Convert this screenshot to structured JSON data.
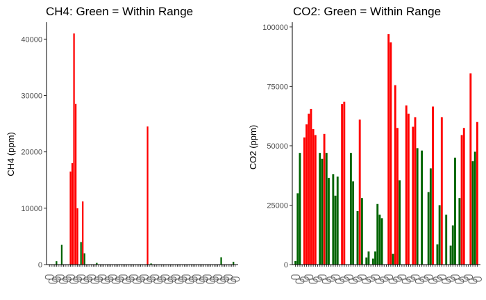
{
  "colors": {
    "in_range": "#006400",
    "out_of_range": "#ff0000",
    "axis": "#000000",
    "tick_text": "#4d4d4d"
  },
  "chart_data": [
    {
      "type": "bar",
      "title": "CH4: Green = Within Range",
      "xlabel": "",
      "ylabel": "CH4 (ppm)",
      "ylim": [
        0,
        43000
      ],
      "yticks": [
        0,
        10000,
        20000,
        30000,
        40000
      ],
      "ytick_labels": [
        "0",
        "10000",
        "20000",
        "30000",
        "40000"
      ],
      "grid": false,
      "x_tick_labels_note": "category tick labels are overplotted and illegible",
      "values": [
        0,
        0,
        0,
        0,
        600,
        0,
        0,
        3500,
        0,
        0,
        0,
        0,
        16500,
        18000,
        41000,
        28500,
        10000,
        0,
        4000,
        11200,
        2000,
        0,
        0,
        0,
        0,
        0,
        0,
        300,
        0,
        0,
        0,
        0,
        0,
        0,
        0,
        0,
        0,
        0,
        0,
        0,
        0,
        0,
        0,
        0,
        0,
        0,
        0,
        0,
        0,
        0,
        0,
        0,
        0,
        0,
        0,
        0,
        24500,
        0,
        200,
        0,
        0,
        0,
        0,
        0,
        0,
        0,
        0,
        0,
        0,
        0,
        0,
        0,
        0,
        0,
        0,
        0,
        0,
        0,
        0,
        0,
        0,
        0,
        0,
        0,
        0,
        0,
        0,
        0,
        0,
        0,
        0,
        0,
        0,
        0,
        0,
        0,
        0,
        0,
        1300,
        0,
        0,
        0,
        0,
        0,
        0,
        500,
        0
      ],
      "within_range": [
        true,
        true,
        true,
        true,
        true,
        true,
        true,
        true,
        true,
        true,
        true,
        true,
        false,
        false,
        false,
        false,
        false,
        true,
        true,
        false,
        true,
        true,
        true,
        true,
        true,
        true,
        true,
        true,
        true,
        true,
        true,
        true,
        true,
        true,
        true,
        true,
        true,
        true,
        true,
        true,
        true,
        true,
        true,
        true,
        true,
        true,
        true,
        true,
        true,
        true,
        true,
        true,
        true,
        true,
        true,
        true,
        false,
        true,
        true,
        true,
        true,
        true,
        true,
        true,
        true,
        true,
        true,
        true,
        true,
        true,
        true,
        true,
        true,
        true,
        true,
        true,
        true,
        true,
        true,
        true,
        true,
        true,
        true,
        true,
        true,
        true,
        true,
        true,
        true,
        true,
        true,
        true,
        true,
        true,
        true,
        true,
        true,
        true,
        true,
        true,
        true,
        true,
        true,
        true,
        true,
        true,
        true
      ]
    },
    {
      "type": "bar",
      "title": "CO2: Green = Within Range",
      "xlabel": "",
      "ylabel": "CO2 (ppm)",
      "ylim": [
        0,
        102000
      ],
      "yticks": [
        0,
        25000,
        50000,
        75000,
        100000
      ],
      "ytick_labels": [
        "0",
        "25000",
        "50000",
        "75000",
        "100000"
      ],
      "grid": false,
      "x_tick_labels_note": "category tick labels are overplotted and illegible",
      "values": [
        1500,
        30000,
        47000,
        0,
        53500,
        59000,
        63500,
        65500,
        57000,
        54500,
        0,
        47000,
        44500,
        55000,
        47000,
        36500,
        0,
        38000,
        29000,
        37000,
        0,
        67500,
        68500,
        0,
        0,
        47000,
        35000,
        0,
        22500,
        61000,
        28000,
        0,
        3000,
        5500,
        0,
        2500,
        5500,
        25500,
        21000,
        19500,
        0,
        0,
        97000,
        93500,
        4500,
        75500,
        57500,
        35500,
        0,
        0,
        67000,
        63500,
        0,
        58000,
        62000,
        49000,
        0,
        48000,
        0,
        0,
        30500,
        40500,
        66500,
        0,
        8500,
        25000,
        62000,
        0,
        21000,
        0,
        8000,
        16500,
        45000,
        0,
        28000,
        54500,
        57500,
        0,
        0,
        80500,
        43500,
        47500,
        60000
      ],
      "within_range": [
        true,
        true,
        true,
        true,
        false,
        false,
        false,
        false,
        false,
        false,
        true,
        true,
        true,
        false,
        true,
        true,
        true,
        true,
        true,
        true,
        true,
        false,
        false,
        true,
        true,
        true,
        true,
        true,
        true,
        false,
        true,
        true,
        true,
        true,
        true,
        true,
        true,
        true,
        true,
        true,
        true,
        true,
        false,
        false,
        true,
        false,
        false,
        true,
        true,
        true,
        false,
        false,
        true,
        false,
        false,
        true,
        true,
        true,
        true,
        true,
        true,
        true,
        false,
        true,
        true,
        true,
        false,
        true,
        true,
        true,
        true,
        true,
        true,
        true,
        true,
        false,
        false,
        true,
        true,
        false,
        true,
        true,
        false
      ]
    }
  ]
}
